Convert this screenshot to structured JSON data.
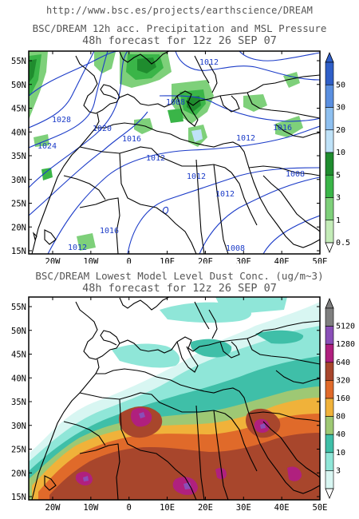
{
  "header": {
    "url": "http://www.bsc.es/projects/earthscience/DREAM"
  },
  "panel_precip": {
    "title_line1": "BSC/DREAM 12h acc. Precipitation and MSL Pressure",
    "title_line2": "48h forecast for 12z 26 SEP 07",
    "lat_labels": [
      "55N",
      "50N",
      "45N",
      "40N",
      "35N",
      "30N",
      "25N",
      "20N",
      "15N"
    ],
    "lon_labels": [
      "20W",
      "10W",
      "0",
      "10E",
      "20E",
      "30E",
      "40E",
      "50E"
    ],
    "colorbar_labels": [
      "50",
      "30",
      "20",
      "10",
      "5",
      "3",
      "1",
      "0.5"
    ],
    "colorbar_colors": [
      "#2f5fc8",
      "#5a8fe0",
      "#8ec0f0",
      "#bfe2f8",
      "#1f8c2e",
      "#3ab548",
      "#7ed07a",
      "#c4ecb8"
    ],
    "isobar_labels": [
      {
        "text": "1012",
        "id": "a"
      },
      {
        "text": "1028",
        "id": "b"
      },
      {
        "text": "1024",
        "id": "c"
      },
      {
        "text": "1020",
        "id": "d"
      },
      {
        "text": "1016",
        "id": "e"
      },
      {
        "text": "1008",
        "id": "f"
      },
      {
        "text": "1012",
        "id": "g"
      },
      {
        "text": "1012",
        "id": "h"
      },
      {
        "text": "1012",
        "id": "i"
      },
      {
        "text": "1016",
        "id": "j"
      },
      {
        "text": "1012",
        "id": "k"
      },
      {
        "text": "1008",
        "id": "l"
      },
      {
        "text": "1012",
        "id": "m"
      },
      {
        "text": "1008",
        "id": "n"
      },
      {
        "text": "1016",
        "id": "o"
      }
    ]
  },
  "panel_dust": {
    "title_line1": "BSC/DREAM Lowest Model Level Dust Conc. (ug/m~3)",
    "title_line2": "48h forecast for 12z 26 SEP 07",
    "lat_labels": [
      "55N",
      "50N",
      "45N",
      "40N",
      "35N",
      "30N",
      "25N",
      "20N",
      "15N"
    ],
    "lon_labels": [
      "20W",
      "10W",
      "0",
      "10E",
      "20E",
      "30E",
      "40E",
      "50E"
    ],
    "colorbar_labels": [
      "5120",
      "1280",
      "640",
      "320",
      "160",
      "80",
      "40",
      "10",
      "3"
    ],
    "colorbar_colors": [
      "#7f7f7f",
      "#8a4fb8",
      "#b0207e",
      "#a8462c",
      "#e06a2a",
      "#f0b23a",
      "#9ec874",
      "#3fbfa8",
      "#8fe6d8",
      "#d8f6f2"
    ]
  }
}
